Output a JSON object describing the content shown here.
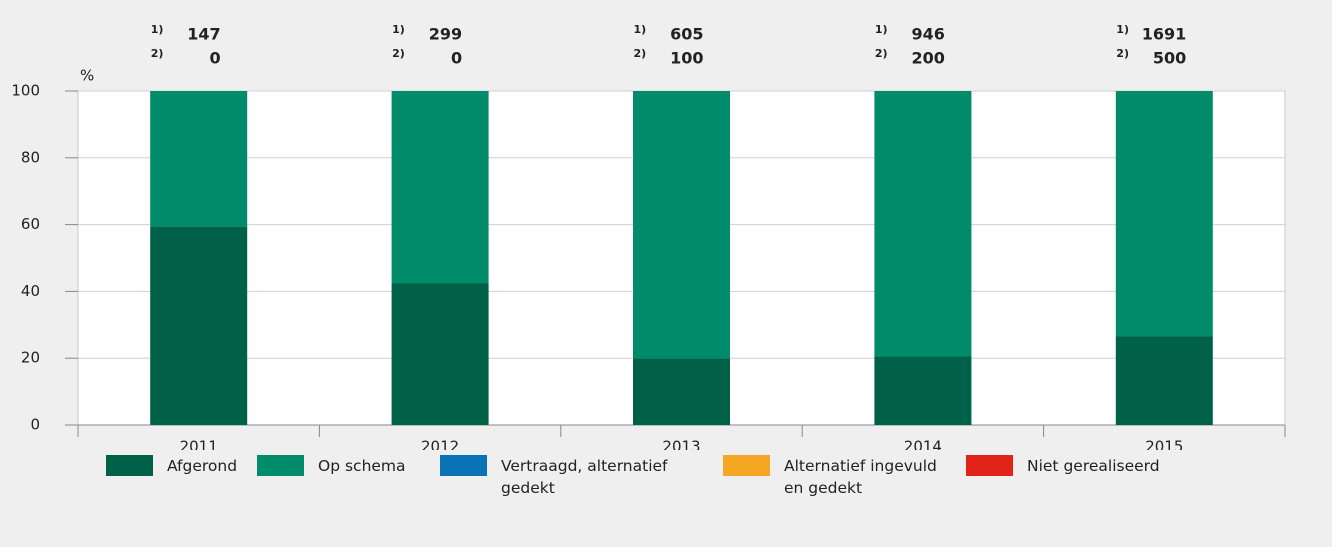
{
  "chart_data": {
    "type": "stacked_bar",
    "y_axis_label": "%",
    "categories": [
      "2011",
      "2012",
      "2013",
      "2014",
      "2015"
    ],
    "series": [
      {
        "name": "Afgerond",
        "color": "#006149",
        "values": [
          59.5,
          42.5,
          20,
          20.5,
          26.5
        ]
      },
      {
        "name": "Op schema",
        "color": "#008c6a",
        "values": [
          40.5,
          57.5,
          80,
          79.5,
          73.5
        ]
      },
      {
        "name": "Vertraagd, alternatief gedekt",
        "color": "#0a73b8",
        "values": [
          0,
          0,
          0,
          0,
          0
        ]
      },
      {
        "name": "Alternatief ingevuld en gedekt",
        "color": "#f5a623",
        "values": [
          0,
          0,
          0,
          0,
          0
        ]
      },
      {
        "name": "Niet gerealiseerd",
        "color": "#e2231a",
        "values": [
          0,
          0,
          0,
          0,
          0
        ]
      }
    ],
    "annotations": [
      {
        "label": "1)",
        "values": [
          147,
          299,
          605,
          946,
          1691
        ]
      },
      {
        "label": "2)",
        "values": [
          0,
          0,
          100,
          200,
          500
        ]
      }
    ],
    "ylim": [
      0,
      100
    ],
    "yticks": [
      0,
      20,
      40,
      60,
      80,
      100
    ],
    "grid": true
  }
}
